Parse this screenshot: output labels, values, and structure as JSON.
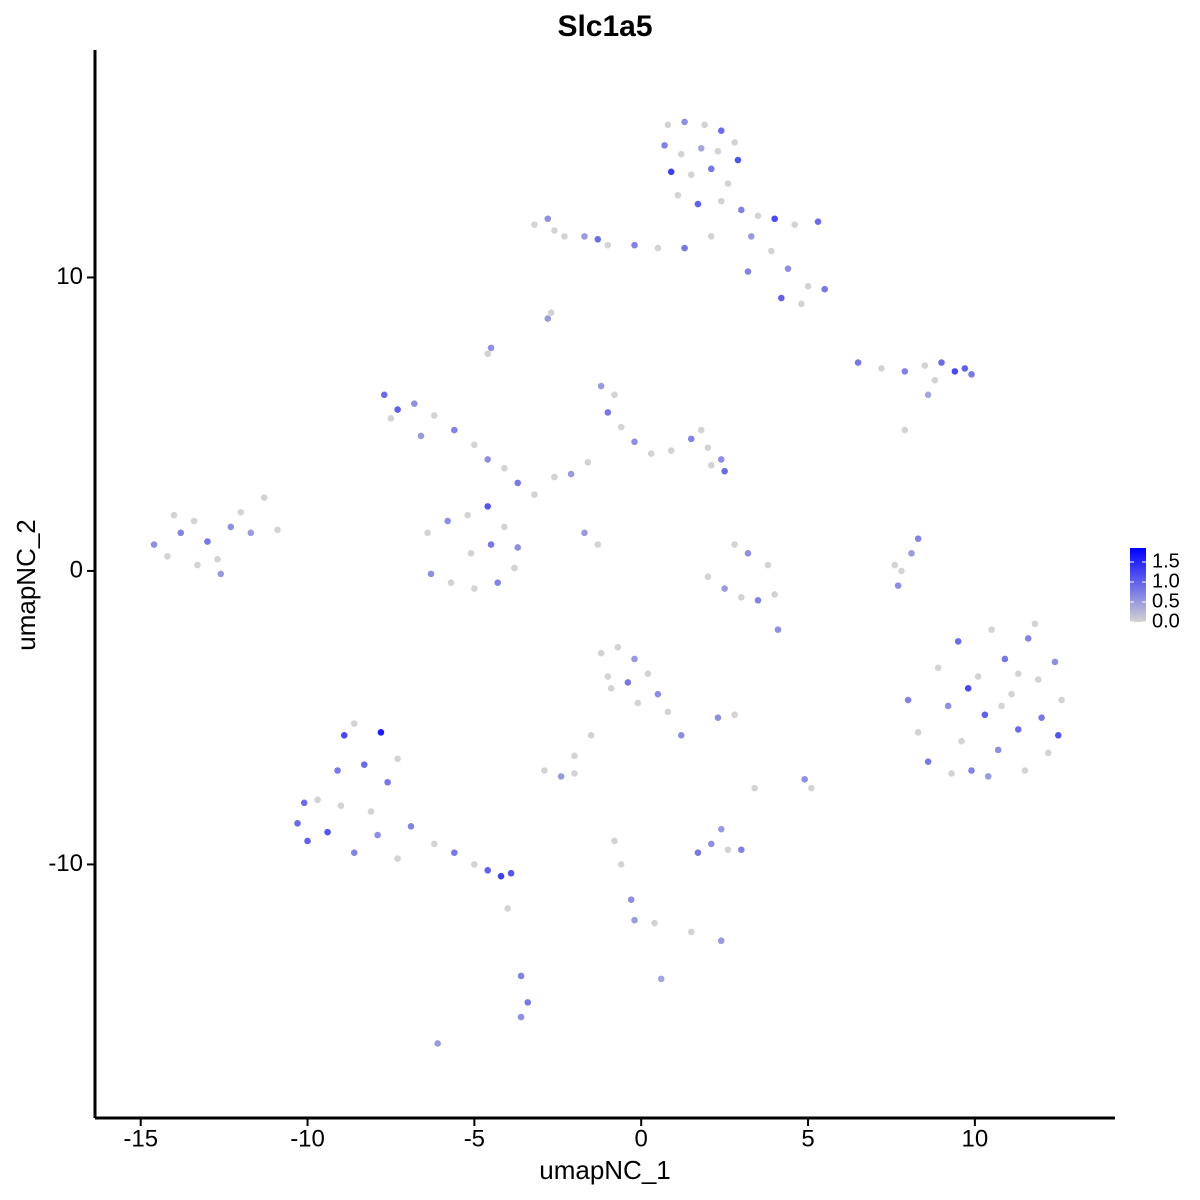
{
  "chart_data": {
    "type": "scatter",
    "title": "Slc1a5",
    "x_label": "umapNC_1",
    "y_label": "umapNC_2",
    "xlim": [
      -16.37,
      14.2
    ],
    "ylim": [
      -18.64,
      17.75
    ],
    "xticks": [
      -15,
      -10,
      -5,
      0,
      5,
      10
    ],
    "yticks": [
      -10,
      0,
      10
    ],
    "color_low": "#d3d3d3",
    "color_high": "#0000ff",
    "color_lim": [
      0,
      1.85
    ],
    "colorbar_ticks": [
      {
        "value": 0,
        "label": "0.0"
      },
      0.5,
      {
        "value": 1,
        "label": "1.0"
      },
      1.5
    ],
    "x": [
      0.8,
      1.3,
      1.9,
      2.4,
      2.8,
      0.7,
      1.2,
      1.8,
      2.3,
      2.9,
      0.9,
      1.5,
      2.1,
      2.6,
      1.1,
      1.7,
      2.4,
      3.0,
      3.5,
      4.0,
      4.6,
      5.3,
      3.3,
      3.9,
      4.4,
      5.0,
      5.5,
      4.8,
      4.2,
      3.2,
      2.1,
      1.3,
      -3.2,
      -2.8,
      -2.3,
      -1.7,
      -1.0,
      -0.2,
      0.5,
      -2.6,
      -1.3,
      -2.8,
      -2.7,
      -4.6,
      -4.5,
      6.5,
      7.2,
      7.9,
      8.5,
      9.0,
      9.4,
      9.7,
      9.9,
      8.8,
      8.6,
      7.9,
      -7.7,
      -7.3,
      -7.5,
      -6.8,
      -6.2,
      -5.6,
      -5.0,
      -4.6,
      -4.1,
      -3.7,
      -3.2,
      -2.6,
      -6.6,
      -1.2,
      -0.8,
      -1.0,
      -0.6,
      -0.2,
      0.3,
      0.9,
      1.5,
      2.0,
      2.4,
      2.1,
      -1.6,
      -2.1,
      1.8,
      2.5,
      -6.4,
      -5.8,
      -5.2,
      -4.6,
      -4.1,
      -3.7,
      -3.8,
      -4.3,
      -5.0,
      -5.7,
      -6.3,
      -5.1,
      -4.5,
      -1.3,
      -1.7,
      -14.6,
      -14.2,
      -13.8,
      -13.4,
      -13.0,
      -12.7,
      -12.3,
      -12.0,
      -11.7,
      -11.3,
      -10.9,
      -13.3,
      -12.6,
      -14.0,
      2.0,
      2.5,
      3.0,
      3.5,
      4.0,
      3.2,
      3.8,
      2.8,
      4.1,
      8.3,
      8.1,
      7.8,
      7.7,
      7.6,
      8.0,
      8.3,
      8.6,
      8.9,
      9.2,
      9.5,
      9.6,
      9.9,
      10.1,
      10.3,
      10.5,
      10.7,
      10.9,
      11.1,
      11.3,
      11.5,
      11.6,
      11.9,
      12.0,
      12.2,
      12.4,
      12.6,
      12.5,
      11.8,
      10.4,
      9.3,
      10.8,
      9.8,
      11.3,
      -1.2,
      -0.7,
      -0.2,
      -1.0,
      -0.4,
      0.2,
      0.5,
      -0.1,
      0.8,
      1.2,
      -0.9,
      -1.5,
      -2.0,
      -2.9,
      -2.4,
      -2.0,
      2.3,
      2.8,
      -10.3,
      -10.0,
      -9.7,
      -9.4,
      -9.1,
      -8.9,
      -8.6,
      -8.3,
      -8.1,
      -7.8,
      -7.6,
      -7.3,
      -8.6,
      -9.0,
      -7.9,
      -7.3,
      -6.9,
      -6.2,
      -5.6,
      -5.0,
      -4.6,
      -4.2,
      -3.9,
      -4.0,
      -10.1,
      1.7,
      2.1,
      2.6,
      3.0,
      2.4,
      -0.8,
      -0.6,
      -0.3,
      -0.2,
      0.4,
      1.5,
      2.4,
      0.6,
      -3.6,
      -3.4,
      -3.6,
      -6.1,
      4.9,
      5.1,
      3.4
    ],
    "y": [
      15.2,
      15.3,
      15.2,
      15.0,
      14.6,
      14.5,
      14.2,
      14.4,
      14.3,
      14.0,
      13.6,
      13.5,
      13.7,
      13.2,
      12.8,
      12.5,
      12.6,
      12.3,
      12.1,
      12.0,
      11.8,
      11.9,
      11.4,
      10.9,
      10.3,
      9.7,
      9.6,
      9.1,
      9.3,
      10.2,
      11.4,
      11.0,
      11.8,
      12.0,
      11.4,
      11.4,
      11.1,
      11.1,
      11.0,
      11.6,
      11.3,
      8.6,
      8.8,
      7.4,
      7.6,
      7.1,
      6.9,
      6.8,
      7.0,
      7.1,
      6.8,
      6.9,
      6.7,
      6.5,
      6.0,
      4.8,
      6.0,
      5.5,
      5.2,
      5.7,
      5.3,
      4.8,
      4.3,
      3.8,
      3.5,
      3.0,
      2.6,
      3.2,
      4.6,
      6.3,
      6.0,
      5.4,
      4.9,
      4.4,
      4.0,
      4.1,
      4.5,
      4.2,
      3.8,
      3.6,
      3.7,
      3.3,
      4.8,
      3.4,
      1.3,
      1.7,
      1.9,
      2.2,
      1.5,
      0.8,
      0.1,
      -0.4,
      -0.6,
      -0.4,
      -0.1,
      0.6,
      0.9,
      0.9,
      1.3,
      0.9,
      0.5,
      1.3,
      1.7,
      1.0,
      0.4,
      1.5,
      2.0,
      1.3,
      2.5,
      1.4,
      0.2,
      -0.1,
      1.9,
      -0.2,
      -0.6,
      -0.9,
      -1.0,
      -0.8,
      0.6,
      0.2,
      0.9,
      -2.0,
      1.1,
      0.6,
      0,
      -0.5,
      0.2,
      -4.4,
      -5.5,
      -6.5,
      -3.3,
      -4.6,
      -2.4,
      -5.8,
      -6.8,
      -3.6,
      -4.9,
      -2.0,
      -6.1,
      -3.0,
      -4.2,
      -5.4,
      -6.8,
      -2.3,
      -3.7,
      -5.0,
      -6.2,
      -3.1,
      -4.4,
      -5.6,
      -1.8,
      -7.0,
      -6.9,
      -4.6,
      -4.0,
      -3.5,
      -2.8,
      -2.6,
      -3.0,
      -3.6,
      -3.8,
      -3.5,
      -4.2,
      -4.5,
      -4.8,
      -5.6,
      -4.0,
      -5.6,
      -6.3,
      -6.8,
      -7.0,
      -6.9,
      -5.0,
      -4.9,
      -8.6,
      -9.2,
      -7.8,
      -8.9,
      -6.8,
      -5.6,
      -5.2,
      -6.6,
      -8.2,
      -5.5,
      -7.2,
      -6.4,
      -9.6,
      -8.0,
      -9.0,
      -9.8,
      -8.7,
      -9.3,
      -9.6,
      -10.0,
      -10.2,
      -10.4,
      -10.3,
      -11.5,
      -7.9,
      -9.6,
      -9.3,
      -9.5,
      -9.5,
      -8.8,
      -9.2,
      -10.0,
      -11.2,
      -11.9,
      -12.0,
      -12.3,
      -12.6,
      -13.9,
      -13.8,
      -14.7,
      -15.2,
      -16.1,
      -7.1,
      -7.4,
      -7.4
    ],
    "values": [
      0,
      0.6,
      0,
      0.9,
      0,
      0.7,
      0,
      0.4,
      0,
      1.1,
      1.3,
      0,
      0.8,
      0,
      0,
      1.0,
      0,
      0.7,
      0,
      1.2,
      0,
      0.9,
      0.5,
      0,
      0.6,
      0,
      0.8,
      0,
      1.0,
      0.7,
      0,
      0.8,
      0,
      0.6,
      0,
      0.5,
      0,
      0.7,
      0,
      0,
      0.9,
      0.5,
      0,
      0,
      0.6,
      0.8,
      0,
      0.7,
      0,
      0.9,
      1.2,
      1.0,
      0.8,
      0,
      0.4,
      0,
      0.9,
      1.0,
      0,
      0.6,
      0,
      0.7,
      0,
      0.6,
      0,
      0.8,
      0,
      0,
      0.5,
      0.5,
      0,
      0.8,
      0,
      0.6,
      0,
      0,
      0.7,
      0,
      0.6,
      0,
      0,
      0.5,
      0,
      0.9,
      0,
      0.6,
      0,
      1.1,
      0,
      0.6,
      0,
      0.7,
      0,
      0,
      0.6,
      0,
      0.8,
      0,
      0.5,
      0.6,
      0,
      0.7,
      0,
      0.8,
      0,
      0.6,
      0,
      0.5,
      0,
      0,
      0,
      0.5,
      0,
      0,
      0.5,
      0,
      0.7,
      0,
      0.6,
      0,
      0,
      0.6,
      0.7,
      0.5,
      0,
      0.6,
      0,
      0.7,
      0,
      0.8,
      0,
      0.6,
      0.9,
      0,
      0.7,
      0,
      1.0,
      0,
      0.6,
      0.8,
      0,
      0.9,
      0,
      0.7,
      0,
      0.8,
      0,
      0.6,
      0,
      1.1,
      0,
      0.5,
      0,
      0,
      1.2,
      0,
      0,
      0,
      0.5,
      0,
      0.8,
      0,
      0.6,
      0,
      0,
      0.6,
      0,
      0,
      0,
      0,
      0.5,
      0,
      0.6,
      0,
      0.9,
      1.0,
      0,
      1.1,
      0.8,
      1.2,
      0,
      0.9,
      0,
      1.6,
      0.8,
      0,
      0.7,
      0,
      0.6,
      0,
      0.7,
      0,
      0.8,
      0,
      1.0,
      1.3,
      1.1,
      0,
      0.9,
      0.8,
      0.6,
      0,
      0.7,
      0.5,
      0,
      0,
      0.6,
      0.5,
      0,
      0,
      0.5,
      0.4,
      0.7,
      0.8,
      0.6,
      0.5,
      0.6,
      0,
      0
    ]
  }
}
